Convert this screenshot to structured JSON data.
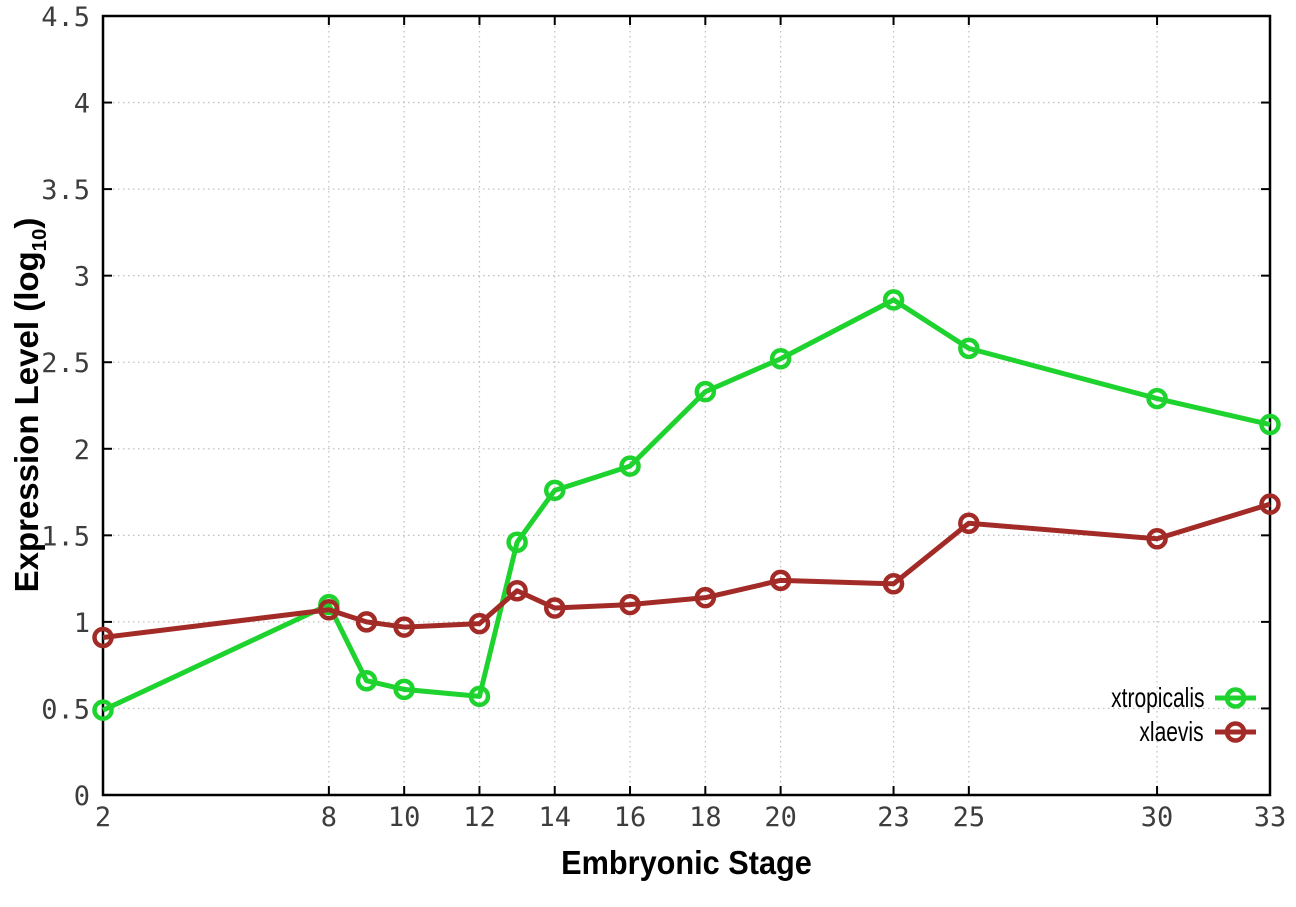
{
  "chart_data": {
    "type": "line",
    "title": "",
    "xlabel": "Embryonic Stage",
    "ylabel": "Expression Level (log10)",
    "ylabel_rich": {
      "pre": "Expression Level (log",
      "sub": "10",
      "post": ")"
    },
    "xlim": [
      2,
      33
    ],
    "ylim": [
      0,
      4.5
    ],
    "grid": true,
    "grid_style": "dotted",
    "legend_position": "inside-bottom-right",
    "x": [
      2,
      8,
      9,
      10,
      12,
      13,
      14,
      16,
      18,
      20,
      23,
      25,
      30,
      33
    ],
    "x_tick_values": [
      2,
      8,
      10,
      12,
      14,
      16,
      18,
      20,
      23,
      25,
      30,
      33
    ],
    "x_tick_labels": [
      "2",
      "8",
      "10",
      "12",
      "14",
      "16",
      "18",
      "20",
      "23",
      "25",
      "30",
      "33"
    ],
    "y_tick_values": [
      0,
      0.5,
      1,
      1.5,
      2,
      2.5,
      3,
      3.5,
      4,
      4.5
    ],
    "y_tick_labels": [
      "0",
      "0.5",
      "1",
      "1.5",
      "2",
      "2.5",
      "3",
      "3.5",
      "4",
      "4.5"
    ],
    "series": [
      {
        "name": "xtropicalis",
        "color": "#1fd32f",
        "marker": "open-circle",
        "values": [
          0.49,
          1.1,
          0.66,
          0.61,
          0.57,
          1.46,
          1.76,
          1.9,
          2.33,
          2.52,
          2.86,
          2.58,
          2.29,
          2.14
        ]
      },
      {
        "name": "xlaevis",
        "color": "#a32b27",
        "marker": "open-circle",
        "values": [
          0.91,
          1.07,
          1.0,
          0.97,
          0.99,
          1.18,
          1.08,
          1.1,
          1.14,
          1.24,
          1.22,
          1.57,
          1.48,
          1.68
        ]
      }
    ],
    "axis_color": "#000000",
    "grid_color": "#c2c2c2",
    "tick_label_color": "#3d3d3d",
    "background": "#ffffff"
  }
}
